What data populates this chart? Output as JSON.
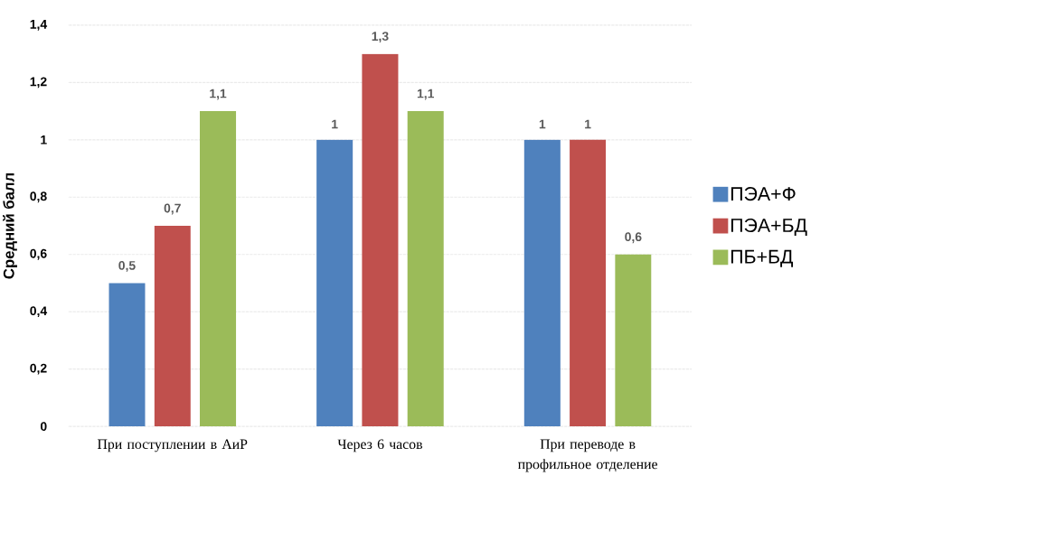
{
  "chart_data": {
    "type": "bar",
    "ylabel": "Средний балл",
    "categories": [
      "При поступлении в АиР",
      "Через 6 часов",
      "При переводе в профильное отделение"
    ],
    "series": [
      {
        "name": "ПЭА+Ф",
        "color": "#4f81bd",
        "values": [
          0.5,
          1,
          1
        ],
        "value_labels": [
          "0,5",
          "1",
          "1"
        ]
      },
      {
        "name": "ПЭА+БД",
        "color": "#c0504d",
        "values": [
          0.7,
          1.3,
          1
        ],
        "value_labels": [
          "0,7",
          "1,3",
          "1"
        ]
      },
      {
        "name": "ПБ+БД",
        "color": "#9bbb59",
        "values": [
          1.1,
          1.1,
          0.6
        ],
        "value_labels": [
          "1,1",
          "1,1",
          "0,6"
        ]
      }
    ],
    "ylim": [
      0,
      1.4
    ],
    "yticks": [
      0,
      {
        "value": 0.2,
        "label": "0,2"
      },
      {
        "value": 0.4,
        "label": "0,4"
      },
      {
        "value": 0.6,
        "label": "0,6"
      },
      {
        "value": 0.8,
        "label": "0,8"
      },
      1,
      {
        "value": 1.2,
        "label": "1,2"
      },
      {
        "value": 1.4,
        "label": "1,4"
      }
    ],
    "grid": "y",
    "legend": "right"
  }
}
